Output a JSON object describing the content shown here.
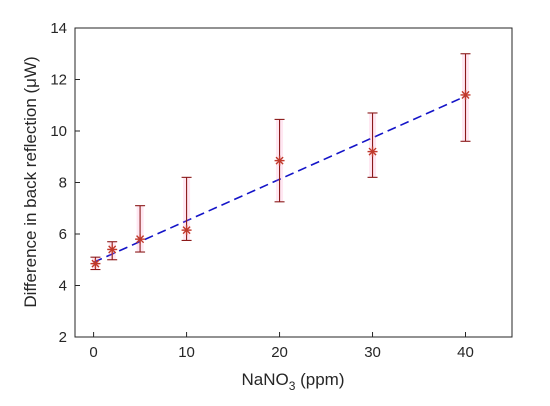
{
  "chart_data": {
    "type": "scatter",
    "title": "",
    "xlabel": {
      "main": "NaNO",
      "sub": "3",
      "tail": " (ppm)"
    },
    "ylabel": "Difference in back reflection (μW)",
    "xlim": [
      -2,
      45
    ],
    "ylim": [
      2,
      14
    ],
    "xticks": [
      0,
      10,
      20,
      30,
      40
    ],
    "yticks": [
      2,
      4,
      6,
      8,
      10,
      12,
      14
    ],
    "x_tick_labels": [
      "0",
      "10",
      "20",
      "30",
      "40"
    ],
    "y_tick_labels": [
      "2",
      "4",
      "6",
      "8",
      "10",
      "12",
      "14"
    ],
    "grid": false,
    "series": [
      {
        "marker": "asterisk",
        "color": "#c0392b",
        "error_color": "#8b1a1a",
        "points": [
          {
            "x": 0.2,
            "y": 4.85,
            "low": 4.62,
            "high": 5.1
          },
          {
            "x": 2,
            "y": 5.4,
            "low": 5.0,
            "high": 5.7
          },
          {
            "x": 5,
            "y": 5.8,
            "low": 5.3,
            "high": 7.1
          },
          {
            "x": 10,
            "y": 6.15,
            "low": 5.75,
            "high": 8.2
          },
          {
            "x": 20,
            "y": 8.85,
            "low": 7.25,
            "high": 10.45
          },
          {
            "x": 30,
            "y": 9.2,
            "low": 8.2,
            "high": 10.7
          },
          {
            "x": 40,
            "y": 11.4,
            "low": 9.6,
            "high": 13.0
          }
        ]
      }
    ],
    "fit_line": {
      "style": "dashed",
      "color": "#1414c8",
      "x": [
        0,
        40
      ],
      "y": [
        4.9,
        11.35
      ]
    }
  }
}
